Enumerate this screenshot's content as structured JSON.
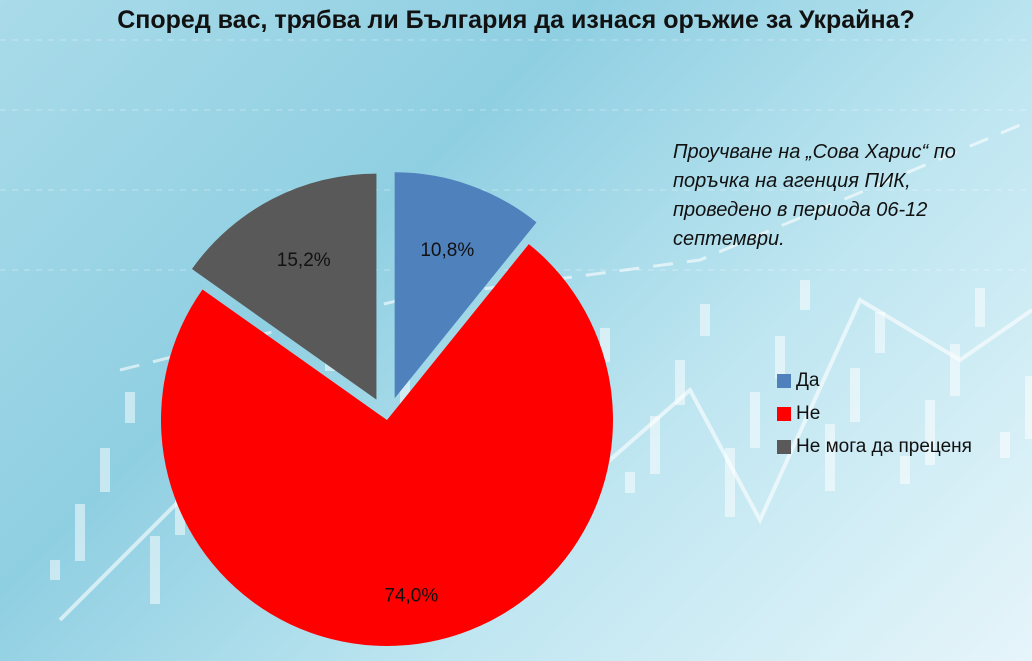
{
  "chart_data": {
    "type": "pie",
    "title": "Според вас, трябва ли България да изнася оръжие за Украйна?",
    "annotation": "Проучване на „Сова Харис“ по поръчка на агенция ПИК, проведено в периода 06-12 септември.",
    "categories": [
      "Да",
      "Не",
      "Не мога да преценя"
    ],
    "values": [
      10.8,
      74.0,
      15.2
    ],
    "labels": [
      "10,8%",
      "74,0%",
      "15,2%"
    ],
    "colors": [
      "#4f81bd",
      "#ff0000",
      "#595959"
    ],
    "exploded": [
      true,
      false,
      true
    ],
    "legend_position": "right"
  }
}
